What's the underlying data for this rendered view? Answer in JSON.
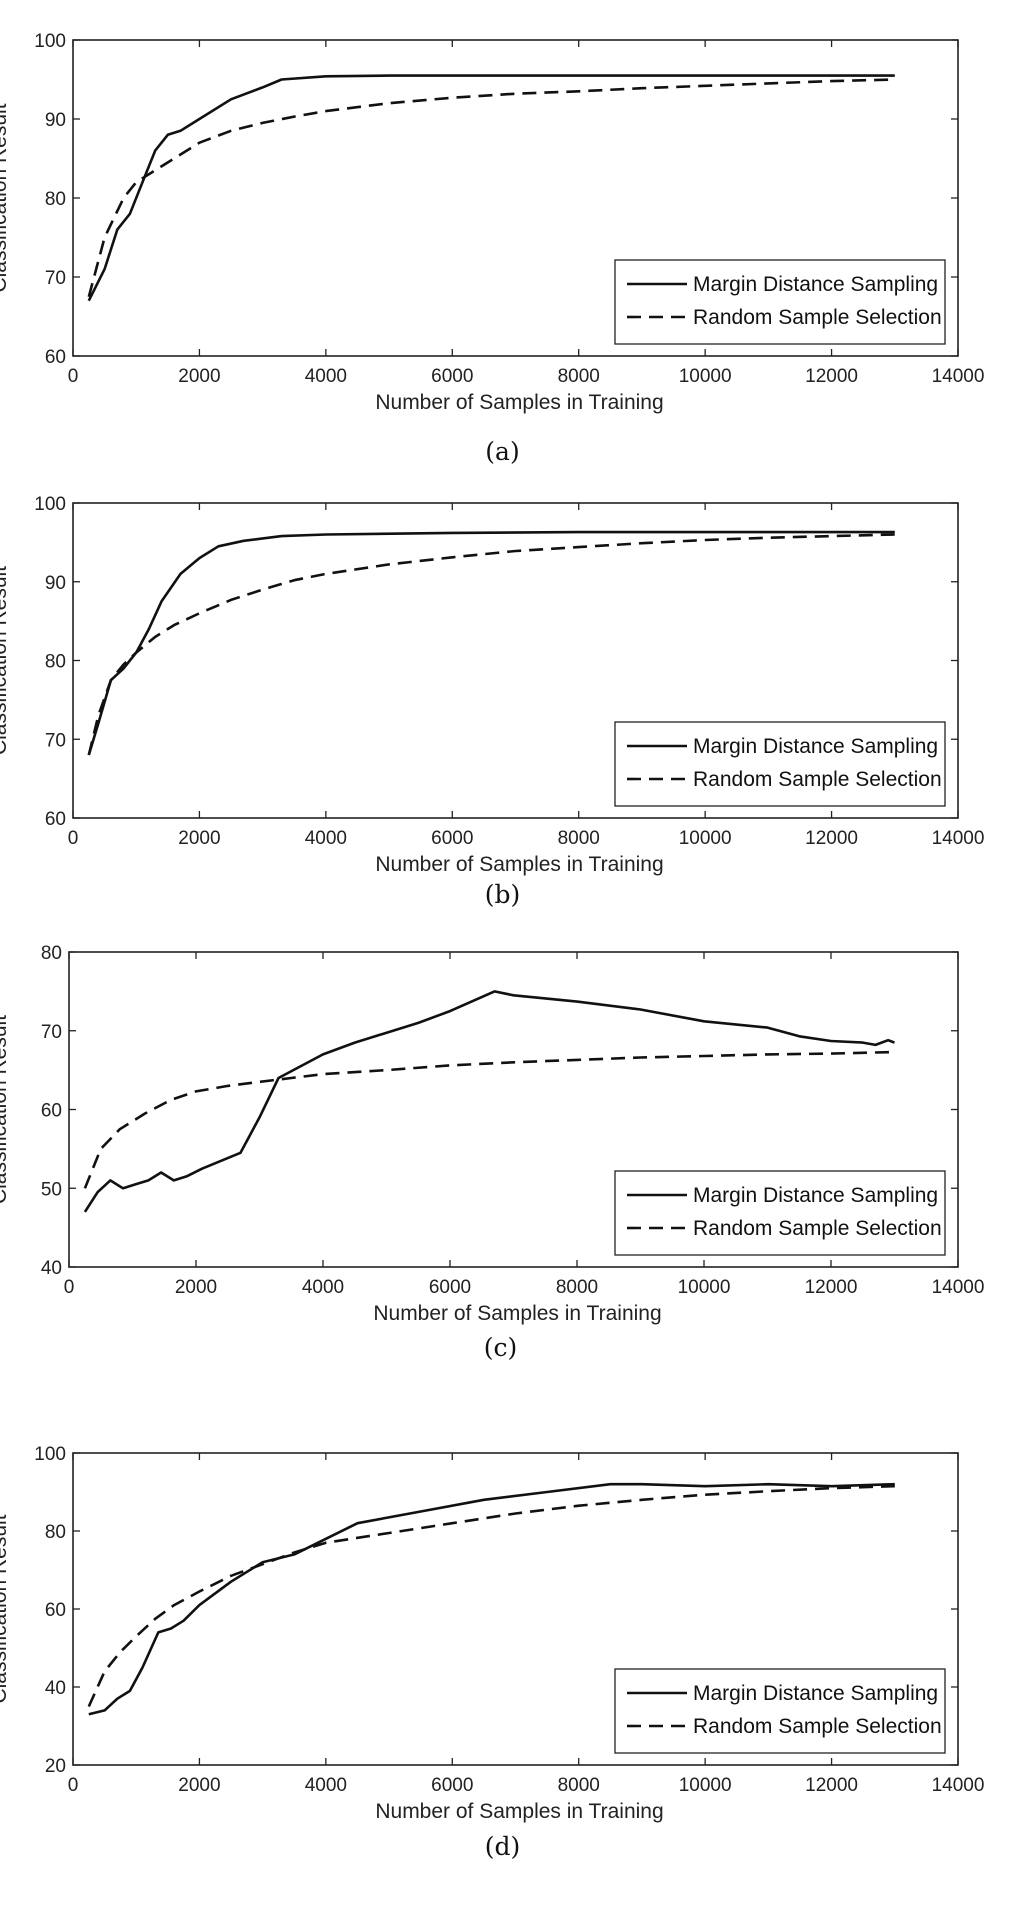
{
  "chart_data": [
    {
      "type": "line",
      "caption": "(a)",
      "xlabel": "Number of Samples in Training",
      "ylabel": "Classification Result",
      "xlim": [
        0,
        14000
      ],
      "ylim": [
        60,
        100
      ],
      "xticks": [
        0,
        2000,
        4000,
        6000,
        8000,
        10000,
        12000,
        14000
      ],
      "yticks": [
        60,
        70,
        80,
        90,
        100
      ],
      "grid": false,
      "legend_position": "bottom-right",
      "series": [
        {
          "name": "Margin Distance Sampling",
          "style": "solid",
          "x": [
            250,
            500,
            700,
            900,
            1100,
            1300,
            1500,
            1700,
            2000,
            2500,
            3000,
            3300,
            4000,
            5000,
            6000,
            8000,
            10000,
            12000,
            13000
          ],
          "y": [
            67,
            71,
            76,
            78,
            82,
            86,
            88,
            88.5,
            90,
            92.5,
            94,
            95,
            95.4,
            95.5,
            95.5,
            95.5,
            95.5,
            95.5,
            95.5
          ]
        },
        {
          "name": "Random Sample Selection",
          "style": "dashed",
          "x": [
            250,
            500,
            800,
            1000,
            1300,
            1600,
            2000,
            2500,
            3000,
            3500,
            4000,
            5000,
            6000,
            7000,
            8000,
            9000,
            10000,
            11000,
            12000,
            13000
          ],
          "y": [
            67.5,
            75,
            80,
            82,
            83.5,
            85,
            87,
            88.5,
            89.5,
            90.3,
            91,
            92,
            92.7,
            93.2,
            93.5,
            93.9,
            94.2,
            94.5,
            94.8,
            95
          ]
        }
      ]
    },
    {
      "type": "line",
      "caption": "(b)",
      "xlabel": "Number of Samples in Training",
      "ylabel": "Classification Result",
      "xlim": [
        0,
        14000
      ],
      "ylim": [
        60,
        100
      ],
      "xticks": [
        0,
        2000,
        4000,
        6000,
        8000,
        10000,
        12000,
        14000
      ],
      "yticks": [
        60,
        70,
        80,
        90,
        100
      ],
      "grid": false,
      "legend_position": "bottom-right",
      "series": [
        {
          "name": "Margin Distance Sampling",
          "style": "solid",
          "x": [
            250,
            400,
            600,
            800,
            1000,
            1200,
            1400,
            1700,
            2000,
            2300,
            2700,
            3300,
            4000,
            6000,
            8000,
            10000,
            12000,
            13000
          ],
          "y": [
            68,
            72,
            77.5,
            79,
            81,
            84,
            87.5,
            91,
            93,
            94.5,
            95.2,
            95.8,
            96,
            96.2,
            96.3,
            96.3,
            96.3,
            96.3
          ]
        },
        {
          "name": "Random Sample Selection",
          "style": "dashed",
          "x": [
            250,
            400,
            600,
            800,
            1000,
            1300,
            1600,
            2000,
            2500,
            3000,
            3500,
            4000,
            5000,
            6000,
            7000,
            8000,
            9000,
            10000,
            11000,
            12000,
            13000
          ],
          "y": [
            68,
            73,
            77.5,
            79.5,
            81,
            83,
            84.5,
            86,
            87.7,
            89,
            90.2,
            91,
            92.2,
            93.1,
            93.9,
            94.4,
            94.9,
            95.3,
            95.6,
            95.8,
            96
          ]
        }
      ]
    },
    {
      "type": "line",
      "caption": "(c)",
      "xlabel": "Number of Samples in Training",
      "ylabel": "Classification Result",
      "xlim": [
        0,
        14000
      ],
      "ylim": [
        40,
        80
      ],
      "xticks": [
        0,
        2000,
        4000,
        6000,
        8000,
        10000,
        12000,
        14000
      ],
      "yticks": [
        40,
        50,
        60,
        70,
        80
      ],
      "grid": false,
      "legend_position": "bottom-right",
      "series": [
        {
          "name": "Margin Distance Sampling",
          "style": "solid",
          "x": [
            250,
            450,
            650,
            850,
            1050,
            1250,
            1450,
            1650,
            1850,
            2100,
            2400,
            2700,
            3000,
            3300,
            4000,
            4500,
            5500,
            6000,
            6700,
            7000,
            8000,
            9000,
            10000,
            11000,
            11500,
            12000,
            12500,
            12700,
            12900,
            13000
          ],
          "y": [
            47,
            49.5,
            51,
            50,
            50.5,
            51,
            52,
            51,
            51.5,
            52.5,
            53.5,
            54.5,
            59,
            64,
            67,
            68.5,
            71,
            72.5,
            75,
            74.5,
            73.7,
            72.7,
            71.2,
            70.4,
            69.3,
            68.7,
            68.5,
            68.2,
            68.8,
            68.5
          ]
        },
        {
          "name": "Random Sample Selection",
          "style": "dashed",
          "x": [
            250,
            500,
            800,
            1200,
            1600,
            2000,
            2500,
            3000,
            3500,
            4000,
            5000,
            6000,
            7000,
            8000,
            9000,
            10000,
            11000,
            12000,
            13000
          ],
          "y": [
            50,
            55,
            57.5,
            59.5,
            61.2,
            62.3,
            63,
            63.5,
            64,
            64.5,
            65,
            65.6,
            66,
            66.3,
            66.6,
            66.8,
            67,
            67.1,
            67.3
          ]
        }
      ]
    },
    {
      "type": "line",
      "caption": "(d)",
      "xlabel": "Number of Samples in Training",
      "ylabel": "Classification Result",
      "xlim": [
        0,
        14000
      ],
      "ylim": [
        20,
        100
      ],
      "xticks": [
        0,
        2000,
        4000,
        6000,
        8000,
        10000,
        12000,
        14000
      ],
      "yticks": [
        20,
        40,
        60,
        80,
        100
      ],
      "grid": false,
      "legend_position": "bottom-right",
      "series": [
        {
          "name": "Margin Distance Sampling",
          "style": "solid",
          "x": [
            250,
            500,
            700,
            900,
            1100,
            1350,
            1550,
            1750,
            2000,
            2500,
            3000,
            3500,
            4000,
            4500,
            5500,
            6500,
            7500,
            8500,
            9000,
            10000,
            11000,
            12000,
            13000
          ],
          "y": [
            33,
            34,
            37,
            39,
            45,
            54,
            55,
            57,
            61,
            67,
            72,
            74,
            78,
            82,
            85,
            88,
            90,
            92,
            92,
            91.5,
            92,
            91.5,
            92
          ]
        },
        {
          "name": "Random Sample Selection",
          "style": "dashed",
          "x": [
            250,
            500,
            750,
            1000,
            1300,
            1600,
            2000,
            2500,
            3000,
            3500,
            4000,
            5000,
            6000,
            7000,
            8000,
            9000,
            10000,
            11000,
            12000,
            13000
          ],
          "y": [
            35,
            44,
            49,
            53,
            57.5,
            61,
            64.5,
            68.5,
            71.5,
            74.5,
            77,
            79.5,
            82,
            84.5,
            86.5,
            88,
            89.3,
            90.2,
            91,
            91.5
          ]
        }
      ]
    }
  ]
}
